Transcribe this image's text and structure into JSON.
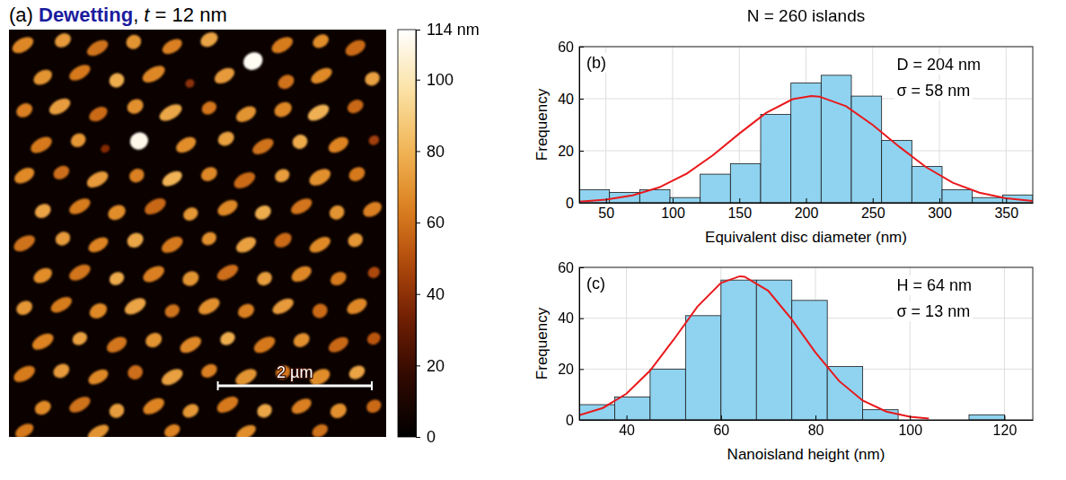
{
  "chart_data": [
    {
      "type": "image",
      "title": [
        "(a) ",
        "Dewetting",
        ", ",
        "t",
        " = 12 nm"
      ],
      "xlim": [
        0,
        4.9
      ],
      "ylim": [
        0,
        5.3
      ],
      "tick_labels": false,
      "substrate": 4,
      "islands": [
        {
          "x": 0.18,
          "y": 0.2,
          "w": 0.3,
          "h": 0.17,
          "z": 66
        },
        {
          "x": 0.7,
          "y": 0.14,
          "w": 0.22,
          "h": 0.17,
          "z": 72
        },
        {
          "x": 1.15,
          "y": 0.24,
          "w": 0.3,
          "h": 0.16,
          "z": 60
        },
        {
          "x": 1.62,
          "y": 0.16,
          "w": 0.2,
          "h": 0.18,
          "z": 70
        },
        {
          "x": 2.12,
          "y": 0.22,
          "w": 0.28,
          "h": 0.16,
          "z": 64
        },
        {
          "x": 2.6,
          "y": 0.13,
          "w": 0.24,
          "h": 0.17,
          "z": 75
        },
        {
          "x": 3.17,
          "y": 0.41,
          "w": 0.26,
          "h": 0.22,
          "z": 112
        },
        {
          "x": 3.55,
          "y": 0.2,
          "w": 0.3,
          "h": 0.17,
          "z": 63
        },
        {
          "x": 4.05,
          "y": 0.15,
          "w": 0.22,
          "h": 0.16,
          "z": 68
        },
        {
          "x": 4.5,
          "y": 0.24,
          "w": 0.28,
          "h": 0.17,
          "z": 58
        },
        {
          "x": 0.44,
          "y": 0.62,
          "w": 0.26,
          "h": 0.17,
          "z": 70
        },
        {
          "x": 0.92,
          "y": 0.56,
          "w": 0.3,
          "h": 0.16,
          "z": 62
        },
        {
          "x": 1.4,
          "y": 0.66,
          "w": 0.2,
          "h": 0.18,
          "z": 78
        },
        {
          "x": 1.88,
          "y": 0.58,
          "w": 0.32,
          "h": 0.17,
          "z": 66
        },
        {
          "x": 2.35,
          "y": 0.7,
          "w": 0.12,
          "h": 0.11,
          "z": 40
        },
        {
          "x": 2.8,
          "y": 0.6,
          "w": 0.28,
          "h": 0.17,
          "z": 72
        },
        {
          "x": 3.6,
          "y": 0.68,
          "w": 0.22,
          "h": 0.17,
          "z": 60
        },
        {
          "x": 4.06,
          "y": 0.6,
          "w": 0.3,
          "h": 0.16,
          "z": 67
        },
        {
          "x": 4.72,
          "y": 0.64,
          "w": 0.2,
          "h": 0.17,
          "z": 74
        },
        {
          "x": 0.2,
          "y": 1.05,
          "w": 0.22,
          "h": 0.17,
          "z": 64
        },
        {
          "x": 0.66,
          "y": 1.0,
          "w": 0.3,
          "h": 0.17,
          "z": 73
        },
        {
          "x": 1.16,
          "y": 1.1,
          "w": 0.26,
          "h": 0.16,
          "z": 58
        },
        {
          "x": 1.64,
          "y": 1.0,
          "w": 0.22,
          "h": 0.18,
          "z": 69
        },
        {
          "x": 2.1,
          "y": 1.08,
          "w": 0.32,
          "h": 0.17,
          "z": 76
        },
        {
          "x": 2.6,
          "y": 1.02,
          "w": 0.2,
          "h": 0.16,
          "z": 61
        },
        {
          "x": 3.08,
          "y": 1.1,
          "w": 0.28,
          "h": 0.17,
          "z": 70
        },
        {
          "x": 3.56,
          "y": 1.04,
          "w": 0.24,
          "h": 0.18,
          "z": 66
        },
        {
          "x": 4.02,
          "y": 1.08,
          "w": 0.3,
          "h": 0.17,
          "z": 79
        },
        {
          "x": 4.5,
          "y": 1.0,
          "w": 0.22,
          "h": 0.16,
          "z": 57
        },
        {
          "x": 0.42,
          "y": 1.5,
          "w": 0.3,
          "h": 0.17,
          "z": 62
        },
        {
          "x": 0.9,
          "y": 1.44,
          "w": 0.2,
          "h": 0.17,
          "z": 71
        },
        {
          "x": 1.25,
          "y": 1.55,
          "w": 0.12,
          "h": 0.1,
          "z": 38
        },
        {
          "x": 1.69,
          "y": 1.45,
          "w": 0.24,
          "h": 0.22,
          "z": 110
        },
        {
          "x": 2.3,
          "y": 1.5,
          "w": 0.28,
          "h": 0.17,
          "z": 68
        },
        {
          "x": 2.82,
          "y": 1.42,
          "w": 0.22,
          "h": 0.17,
          "z": 74
        },
        {
          "x": 3.3,
          "y": 1.52,
          "w": 0.3,
          "h": 0.16,
          "z": 60
        },
        {
          "x": 3.78,
          "y": 1.46,
          "w": 0.2,
          "h": 0.18,
          "z": 77
        },
        {
          "x": 4.28,
          "y": 1.5,
          "w": 0.28,
          "h": 0.17,
          "z": 65
        },
        {
          "x": 4.74,
          "y": 1.44,
          "w": 0.14,
          "h": 0.12,
          "z": 45
        },
        {
          "x": 0.2,
          "y": 1.9,
          "w": 0.28,
          "h": 0.17,
          "z": 67
        },
        {
          "x": 0.68,
          "y": 1.86,
          "w": 0.22,
          "h": 0.16,
          "z": 59
        },
        {
          "x": 1.15,
          "y": 1.95,
          "w": 0.3,
          "h": 0.17,
          "z": 72
        },
        {
          "x": 1.66,
          "y": 1.9,
          "w": 0.2,
          "h": 0.17,
          "z": 64
        },
        {
          "x": 2.12,
          "y": 1.94,
          "w": 0.28,
          "h": 0.16,
          "z": 80
        },
        {
          "x": 2.6,
          "y": 1.88,
          "w": 0.22,
          "h": 0.17,
          "z": 66
        },
        {
          "x": 3.06,
          "y": 1.96,
          "w": 0.3,
          "h": 0.17,
          "z": 58
        },
        {
          "x": 3.55,
          "y": 1.9,
          "w": 0.2,
          "h": 0.16,
          "z": 73
        },
        {
          "x": 4.04,
          "y": 1.92,
          "w": 0.3,
          "h": 0.18,
          "z": 69
        },
        {
          "x": 4.52,
          "y": 1.88,
          "w": 0.22,
          "h": 0.17,
          "z": 62
        },
        {
          "x": 0.44,
          "y": 2.36,
          "w": 0.22,
          "h": 0.17,
          "z": 75
        },
        {
          "x": 0.92,
          "y": 2.3,
          "w": 0.3,
          "h": 0.16,
          "z": 63
        },
        {
          "x": 1.4,
          "y": 2.38,
          "w": 0.24,
          "h": 0.18,
          "z": 68
        },
        {
          "x": 1.9,
          "y": 2.3,
          "w": 0.3,
          "h": 0.17,
          "z": 57
        },
        {
          "x": 2.36,
          "y": 2.4,
          "w": 0.2,
          "h": 0.16,
          "z": 71
        },
        {
          "x": 2.84,
          "y": 2.32,
          "w": 0.28,
          "h": 0.17,
          "z": 66
        },
        {
          "x": 3.3,
          "y": 2.38,
          "w": 0.22,
          "h": 0.17,
          "z": 78
        },
        {
          "x": 3.8,
          "y": 2.3,
          "w": 0.3,
          "h": 0.16,
          "z": 61
        },
        {
          "x": 4.26,
          "y": 2.38,
          "w": 0.2,
          "h": 0.18,
          "z": 70
        },
        {
          "x": 4.72,
          "y": 2.34,
          "w": 0.26,
          "h": 0.17,
          "z": 64
        },
        {
          "x": 0.2,
          "y": 2.78,
          "w": 0.3,
          "h": 0.17,
          "z": 60
        },
        {
          "x": 0.7,
          "y": 2.72,
          "w": 0.2,
          "h": 0.17,
          "z": 72
        },
        {
          "x": 1.16,
          "y": 2.8,
          "w": 0.28,
          "h": 0.16,
          "z": 65
        },
        {
          "x": 1.64,
          "y": 2.74,
          "w": 0.22,
          "h": 0.18,
          "z": 76
        },
        {
          "x": 2.12,
          "y": 2.8,
          "w": 0.3,
          "h": 0.17,
          "z": 62
        },
        {
          "x": 2.6,
          "y": 2.72,
          "w": 0.2,
          "h": 0.16,
          "z": 69
        },
        {
          "x": 3.08,
          "y": 2.8,
          "w": 0.28,
          "h": 0.17,
          "z": 74
        },
        {
          "x": 3.56,
          "y": 2.74,
          "w": 0.24,
          "h": 0.17,
          "z": 58
        },
        {
          "x": 4.04,
          "y": 2.8,
          "w": 0.3,
          "h": 0.16,
          "z": 67
        },
        {
          "x": 4.5,
          "y": 2.74,
          "w": 0.2,
          "h": 0.17,
          "z": 71
        },
        {
          "x": 0.44,
          "y": 3.2,
          "w": 0.26,
          "h": 0.17,
          "z": 68
        },
        {
          "x": 0.92,
          "y": 3.16,
          "w": 0.3,
          "h": 0.17,
          "z": 61
        },
        {
          "x": 1.4,
          "y": 3.24,
          "w": 0.2,
          "h": 0.16,
          "z": 77
        },
        {
          "x": 1.88,
          "y": 3.18,
          "w": 0.3,
          "h": 0.17,
          "z": 64
        },
        {
          "x": 2.36,
          "y": 3.24,
          "w": 0.22,
          "h": 0.18,
          "z": 70
        },
        {
          "x": 2.84,
          "y": 3.16,
          "w": 0.3,
          "h": 0.16,
          "z": 59
        },
        {
          "x": 3.32,
          "y": 3.24,
          "w": 0.2,
          "h": 0.17,
          "z": 73
        },
        {
          "x": 3.8,
          "y": 3.18,
          "w": 0.28,
          "h": 0.17,
          "z": 66
        },
        {
          "x": 4.28,
          "y": 3.24,
          "w": 0.22,
          "h": 0.16,
          "z": 62
        },
        {
          "x": 4.74,
          "y": 3.16,
          "w": 0.16,
          "h": 0.14,
          "z": 48
        },
        {
          "x": 0.2,
          "y": 3.62,
          "w": 0.22,
          "h": 0.17,
          "z": 71
        },
        {
          "x": 0.68,
          "y": 3.58,
          "w": 0.3,
          "h": 0.16,
          "z": 63
        },
        {
          "x": 1.16,
          "y": 3.66,
          "w": 0.24,
          "h": 0.18,
          "z": 67
        },
        {
          "x": 1.64,
          "y": 3.6,
          "w": 0.3,
          "h": 0.17,
          "z": 75
        },
        {
          "x": 2.12,
          "y": 3.66,
          "w": 0.2,
          "h": 0.16,
          "z": 60
        },
        {
          "x": 2.6,
          "y": 3.6,
          "w": 0.3,
          "h": 0.17,
          "z": 69
        },
        {
          "x": 3.08,
          "y": 3.66,
          "w": 0.22,
          "h": 0.17,
          "z": 64
        },
        {
          "x": 3.56,
          "y": 3.6,
          "w": 0.3,
          "h": 0.16,
          "z": 72
        },
        {
          "x": 4.04,
          "y": 3.66,
          "w": 0.2,
          "h": 0.18,
          "z": 58
        },
        {
          "x": 4.52,
          "y": 3.6,
          "w": 0.28,
          "h": 0.17,
          "z": 66
        },
        {
          "x": 0.44,
          "y": 4.06,
          "w": 0.3,
          "h": 0.17,
          "z": 65
        },
        {
          "x": 0.92,
          "y": 4.02,
          "w": 0.2,
          "h": 0.16,
          "z": 74
        },
        {
          "x": 1.4,
          "y": 4.1,
          "w": 0.28,
          "h": 0.17,
          "z": 61
        },
        {
          "x": 1.88,
          "y": 4.04,
          "w": 0.22,
          "h": 0.18,
          "z": 70
        },
        {
          "x": 2.36,
          "y": 4.1,
          "w": 0.3,
          "h": 0.17,
          "z": 66
        },
        {
          "x": 2.84,
          "y": 4.02,
          "w": 0.2,
          "h": 0.16,
          "z": 78
        },
        {
          "x": 3.32,
          "y": 4.1,
          "w": 0.3,
          "h": 0.17,
          "z": 62
        },
        {
          "x": 3.8,
          "y": 4.04,
          "w": 0.22,
          "h": 0.17,
          "z": 69
        },
        {
          "x": 4.28,
          "y": 4.1,
          "w": 0.28,
          "h": 0.16,
          "z": 57
        },
        {
          "x": 4.74,
          "y": 4.02,
          "w": 0.18,
          "h": 0.15,
          "z": 52
        },
        {
          "x": 0.2,
          "y": 4.48,
          "w": 0.3,
          "h": 0.17,
          "z": 63
        },
        {
          "x": 0.68,
          "y": 4.44,
          "w": 0.22,
          "h": 0.17,
          "z": 72
        },
        {
          "x": 1.16,
          "y": 4.52,
          "w": 0.28,
          "h": 0.16,
          "z": 66
        },
        {
          "x": 1.64,
          "y": 4.46,
          "w": 0.2,
          "h": 0.18,
          "z": 59
        },
        {
          "x": 2.12,
          "y": 4.52,
          "w": 0.3,
          "h": 0.17,
          "z": 74
        },
        {
          "x": 2.6,
          "y": 4.44,
          "w": 0.22,
          "h": 0.16,
          "z": 64
        },
        {
          "x": 3.08,
          "y": 4.52,
          "w": 0.3,
          "h": 0.17,
          "z": 70
        },
        {
          "x": 3.56,
          "y": 4.46,
          "w": 0.2,
          "h": 0.17,
          "z": 61
        },
        {
          "x": 4.04,
          "y": 4.52,
          "w": 0.28,
          "h": 0.18,
          "z": 68
        },
        {
          "x": 4.52,
          "y": 4.46,
          "w": 0.22,
          "h": 0.16,
          "z": 75
        },
        {
          "x": 0.44,
          "y": 4.92,
          "w": 0.22,
          "h": 0.17,
          "z": 67
        },
        {
          "x": 0.92,
          "y": 4.88,
          "w": 0.3,
          "h": 0.16,
          "z": 60
        },
        {
          "x": 1.4,
          "y": 4.96,
          "w": 0.2,
          "h": 0.18,
          "z": 73
        },
        {
          "x": 1.88,
          "y": 4.9,
          "w": 0.3,
          "h": 0.17,
          "z": 65
        },
        {
          "x": 2.36,
          "y": 4.96,
          "w": 0.22,
          "h": 0.16,
          "z": 71
        },
        {
          "x": 2.84,
          "y": 4.88,
          "w": 0.3,
          "h": 0.17,
          "z": 62
        },
        {
          "x": 3.32,
          "y": 4.96,
          "w": 0.2,
          "h": 0.17,
          "z": 76
        },
        {
          "x": 3.8,
          "y": 4.9,
          "w": 0.28,
          "h": 0.16,
          "z": 64
        },
        {
          "x": 4.28,
          "y": 4.96,
          "w": 0.22,
          "h": 0.18,
          "z": 69
        },
        {
          "x": 4.74,
          "y": 4.9,
          "w": 0.2,
          "h": 0.16,
          "z": 58
        },
        {
          "x": 0.2,
          "y": 5.22,
          "w": 0.26,
          "h": 0.15,
          "z": 62
        },
        {
          "x": 1.16,
          "y": 5.24,
          "w": 0.3,
          "h": 0.15,
          "z": 70
        },
        {
          "x": 2.12,
          "y": 5.22,
          "w": 0.22,
          "h": 0.15,
          "z": 65
        },
        {
          "x": 3.08,
          "y": 5.24,
          "w": 0.28,
          "h": 0.15,
          "z": 68
        },
        {
          "x": 4.04,
          "y": 5.22,
          "w": 0.22,
          "h": 0.15,
          "z": 60
        }
      ],
      "colorbar": {
        "range": [
          0,
          114
        ],
        "ticks": [
          0,
          20,
          40,
          60,
          80,
          100,
          {
            "value": 114,
            "label": "114 nm"
          }
        ]
      },
      "scale_bar": {
        "value": 2,
        "label": "2 µm"
      }
    },
    {
      "type": "histogram",
      "title": "N = 260 islands",
      "annotations": [
        "(b)",
        "D = 204 nm",
        "σ = 58 nm"
      ],
      "xlabel": "Equivalent disc diameter (nm)",
      "ylabel": "Frequency",
      "bins": [
        30,
        52.67,
        75.33,
        98,
        120.67,
        143.33,
        166,
        188.67,
        211.33,
        234,
        256.67,
        279.33,
        302,
        324.67,
        347.33,
        370
      ],
      "counts": [
        5,
        4,
        5,
        2,
        11,
        15,
        34,
        46,
        49,
        41,
        24,
        14,
        5,
        2,
        3
      ],
      "color": "#8fd3f0",
      "xlim": [
        30,
        370
      ],
      "ylim": [
        0,
        60
      ],
      "xticks": [
        50,
        100,
        150,
        200,
        250,
        300,
        350
      ],
      "yticks": [
        0,
        20,
        40,
        60
      ],
      "grid": true,
      "series": [
        {
          "type": "line",
          "color": "#e8191c",
          "x": [
            30,
            50,
            70,
            90,
            110,
            130,
            150,
            170,
            190,
            204,
            210,
            230,
            250,
            270,
            290,
            310,
            330,
            350,
            370
          ],
          "values": [
            0.46,
            1.21,
            2.84,
            5.94,
            11.03,
            18.2,
            26.6,
            34.5,
            39.8,
            41,
            40.8,
            37.1,
            29.9,
            21.5,
            13.7,
            7.7,
            3.87,
            1.73,
            0.68
          ]
        }
      ]
    },
    {
      "type": "histogram",
      "annotations": [
        "(c)",
        "H = 64 nm",
        "σ = 13 nm"
      ],
      "xlabel": "Nanoisland height (nm)",
      "ylabel": "Frequency",
      "bins": [
        30,
        37.5,
        45,
        52.5,
        60,
        67.5,
        75,
        82.5,
        90,
        97.5,
        105,
        112.5,
        120
      ],
      "counts": [
        6,
        9,
        20,
        41,
        55,
        55,
        47,
        21,
        4,
        0,
        0,
        2
      ],
      "color": "#8fd3f0",
      "xlim": [
        30,
        126
      ],
      "ylim": [
        0,
        60
      ],
      "xticks": [
        40,
        60,
        80,
        100,
        120
      ],
      "yticks": [
        0,
        20,
        40,
        60
      ],
      "grid": true,
      "series": [
        {
          "type": "line",
          "color": "#e8191c",
          "x": [
            30,
            35,
            40,
            45,
            50,
            55,
            60,
            64,
            65,
            70,
            75,
            80,
            85,
            90,
            95,
            100,
            104
          ],
          "values": [
            1.85,
            4.69,
            10.3,
            19.4,
            31.6,
            44.5,
            53.9,
            56.5,
            56.3,
            50.8,
            39.5,
            26.5,
            15.3,
            7.6,
            3.28,
            1.22,
            0.5
          ]
        }
      ]
    }
  ]
}
